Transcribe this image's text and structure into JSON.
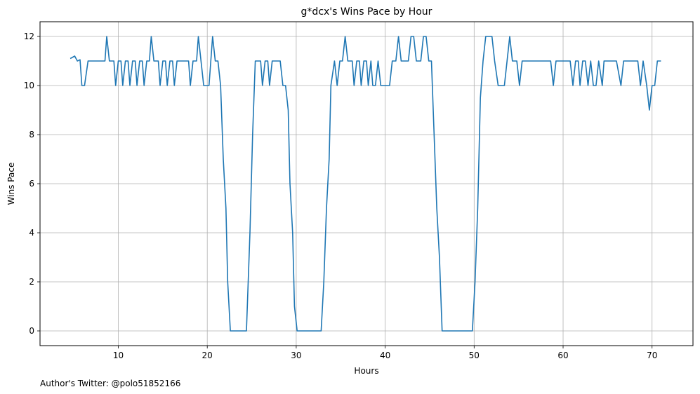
{
  "chart_data": {
    "type": "line",
    "title": "g*dcx's Wins Pace by Hour",
    "xlabel": "Hours",
    "ylabel": "Wins Pace",
    "footer": "Author's Twitter: @polo51852166",
    "xlim": [
      1.2,
      74.6
    ],
    "ylim": [
      -0.6,
      12.6
    ],
    "xticks": [
      10,
      20,
      30,
      40,
      50,
      60,
      70
    ],
    "yticks": [
      0,
      2,
      4,
      6,
      8,
      10,
      12
    ],
    "grid": true,
    "series_color": "#1f77b4",
    "series": [
      {
        "points": [
          [
            4.6,
            11.1
          ],
          [
            5.1,
            11.2
          ],
          [
            5.4,
            11.0
          ],
          [
            5.7,
            11.05
          ],
          [
            5.9,
            10.0
          ],
          [
            6.2,
            10.0
          ],
          [
            6.6,
            11.0
          ],
          [
            7.0,
            11.0
          ],
          [
            7.5,
            11.0
          ],
          [
            8.0,
            11.0
          ],
          [
            8.5,
            11.0
          ],
          [
            8.7,
            12.0
          ],
          [
            9.0,
            11.0
          ],
          [
            9.5,
            11.0
          ],
          [
            9.7,
            10.0
          ],
          [
            10.0,
            11.0
          ],
          [
            10.3,
            11.0
          ],
          [
            10.5,
            10.0
          ],
          [
            10.8,
            11.0
          ],
          [
            11.1,
            11.0
          ],
          [
            11.3,
            10.0
          ],
          [
            11.6,
            11.0
          ],
          [
            11.9,
            11.0
          ],
          [
            12.1,
            10.0
          ],
          [
            12.4,
            11.0
          ],
          [
            12.7,
            11.0
          ],
          [
            12.9,
            10.0
          ],
          [
            13.2,
            11.0
          ],
          [
            13.5,
            11.0
          ],
          [
            13.7,
            12.0
          ],
          [
            14.0,
            11.0
          ],
          [
            14.5,
            11.0
          ],
          [
            14.7,
            10.0
          ],
          [
            15.0,
            11.0
          ],
          [
            15.3,
            11.0
          ],
          [
            15.5,
            10.0
          ],
          [
            15.8,
            11.0
          ],
          [
            16.1,
            11.0
          ],
          [
            16.3,
            10.0
          ],
          [
            16.6,
            11.0
          ],
          [
            17.0,
            11.0
          ],
          [
            17.5,
            11.0
          ],
          [
            17.9,
            11.0
          ],
          [
            18.1,
            10.0
          ],
          [
            18.4,
            11.0
          ],
          [
            18.8,
            11.0
          ],
          [
            19.0,
            12.0
          ],
          [
            19.3,
            11.0
          ],
          [
            19.6,
            10.0
          ],
          [
            20.0,
            10.0
          ],
          [
            20.2,
            10.0
          ],
          [
            20.6,
            12.0
          ],
          [
            20.9,
            11.0
          ],
          [
            21.2,
            11.0
          ],
          [
            21.5,
            10.0
          ],
          [
            21.8,
            7.0
          ],
          [
            22.1,
            5.0
          ],
          [
            22.3,
            2.0
          ],
          [
            22.6,
            0.0
          ],
          [
            23.0,
            0.0
          ],
          [
            24.0,
            0.0
          ],
          [
            24.4,
            0.0
          ],
          [
            24.8,
            4.0
          ],
          [
            25.1,
            8.0
          ],
          [
            25.4,
            11.0
          ],
          [
            26.0,
            11.0
          ],
          [
            26.2,
            10.0
          ],
          [
            26.5,
            11.0
          ],
          [
            26.8,
            11.0
          ],
          [
            27.0,
            10.0
          ],
          [
            27.3,
            11.0
          ],
          [
            27.8,
            11.0
          ],
          [
            28.2,
            11.0
          ],
          [
            28.5,
            10.0
          ],
          [
            28.8,
            10.0
          ],
          [
            29.1,
            9.0
          ],
          [
            29.3,
            6.0
          ],
          [
            29.6,
            4.0
          ],
          [
            29.8,
            1.0
          ],
          [
            30.1,
            0.0
          ],
          [
            31.0,
            0.0
          ],
          [
            32.0,
            0.0
          ],
          [
            32.8,
            0.0
          ],
          [
            33.1,
            2.0
          ],
          [
            33.4,
            5.0
          ],
          [
            33.7,
            7.0
          ],
          [
            33.9,
            10.0
          ],
          [
            34.3,
            11.0
          ],
          [
            34.6,
            10.0
          ],
          [
            34.9,
            11.0
          ],
          [
            35.2,
            11.0
          ],
          [
            35.5,
            12.0
          ],
          [
            35.8,
            11.0
          ],
          [
            36.3,
            11.0
          ],
          [
            36.5,
            10.0
          ],
          [
            36.8,
            11.0
          ],
          [
            37.1,
            11.0
          ],
          [
            37.3,
            10.0
          ],
          [
            37.6,
            11.0
          ],
          [
            37.9,
            11.0
          ],
          [
            38.1,
            10.0
          ],
          [
            38.4,
            11.0
          ],
          [
            38.6,
            10.0
          ],
          [
            38.9,
            10.0
          ],
          [
            39.2,
            11.0
          ],
          [
            39.5,
            10.0
          ],
          [
            40.0,
            10.0
          ],
          [
            40.5,
            10.0
          ],
          [
            40.8,
            11.0
          ],
          [
            41.2,
            11.0
          ],
          [
            41.5,
            12.0
          ],
          [
            41.8,
            11.0
          ],
          [
            42.1,
            11.0
          ],
          [
            42.6,
            11.0
          ],
          [
            42.9,
            12.0
          ],
          [
            43.2,
            12.0
          ],
          [
            43.5,
            11.0
          ],
          [
            44.0,
            11.0
          ],
          [
            44.3,
            12.0
          ],
          [
            44.6,
            12.0
          ],
          [
            44.9,
            11.0
          ],
          [
            45.2,
            11.0
          ],
          [
            45.5,
            8.0
          ],
          [
            45.8,
            5.0
          ],
          [
            46.1,
            3.0
          ],
          [
            46.4,
            0.0
          ],
          [
            47.0,
            0.0
          ],
          [
            48.0,
            0.0
          ],
          [
            49.0,
            0.0
          ],
          [
            49.8,
            0.0
          ],
          [
            50.1,
            2.0
          ],
          [
            50.4,
            5.0
          ],
          [
            50.7,
            9.5
          ],
          [
            51.0,
            11.0
          ],
          [
            51.3,
            12.0
          ],
          [
            51.8,
            12.0
          ],
          [
            52.0,
            12.0
          ],
          [
            52.3,
            11.0
          ],
          [
            52.7,
            10.0
          ],
          [
            53.1,
            10.0
          ],
          [
            53.4,
            10.0
          ],
          [
            53.7,
            11.0
          ],
          [
            54.0,
            12.0
          ],
          [
            54.3,
            11.0
          ],
          [
            54.8,
            11.0
          ],
          [
            55.1,
            10.0
          ],
          [
            55.4,
            11.0
          ],
          [
            56.0,
            11.0
          ],
          [
            57.0,
            11.0
          ],
          [
            58.0,
            11.0
          ],
          [
            58.6,
            11.0
          ],
          [
            58.9,
            10.0
          ],
          [
            59.2,
            11.0
          ],
          [
            60.0,
            11.0
          ],
          [
            60.8,
            11.0
          ],
          [
            61.1,
            10.0
          ],
          [
            61.4,
            11.0
          ],
          [
            61.7,
            11.0
          ],
          [
            61.9,
            10.0
          ],
          [
            62.2,
            11.0
          ],
          [
            62.5,
            11.0
          ],
          [
            62.8,
            10.0
          ],
          [
            63.1,
            11.0
          ],
          [
            63.4,
            10.0
          ],
          [
            63.7,
            10.0
          ],
          [
            64.0,
            11.0
          ],
          [
            64.4,
            10.0
          ],
          [
            64.6,
            11.0
          ],
          [
            65.0,
            11.0
          ],
          [
            65.5,
            11.0
          ],
          [
            66.0,
            11.0
          ],
          [
            66.5,
            10.0
          ],
          [
            66.8,
            11.0
          ],
          [
            67.1,
            11.0
          ],
          [
            67.5,
            11.0
          ],
          [
            68.0,
            11.0
          ],
          [
            68.4,
            11.0
          ],
          [
            68.7,
            10.0
          ],
          [
            69.0,
            11.0
          ],
          [
            69.4,
            10.0
          ],
          [
            69.7,
            9.0
          ],
          [
            70.0,
            10.0
          ],
          [
            70.3,
            10.0
          ],
          [
            70.6,
            11.0
          ],
          [
            71.0,
            11.0
          ]
        ]
      }
    ]
  }
}
